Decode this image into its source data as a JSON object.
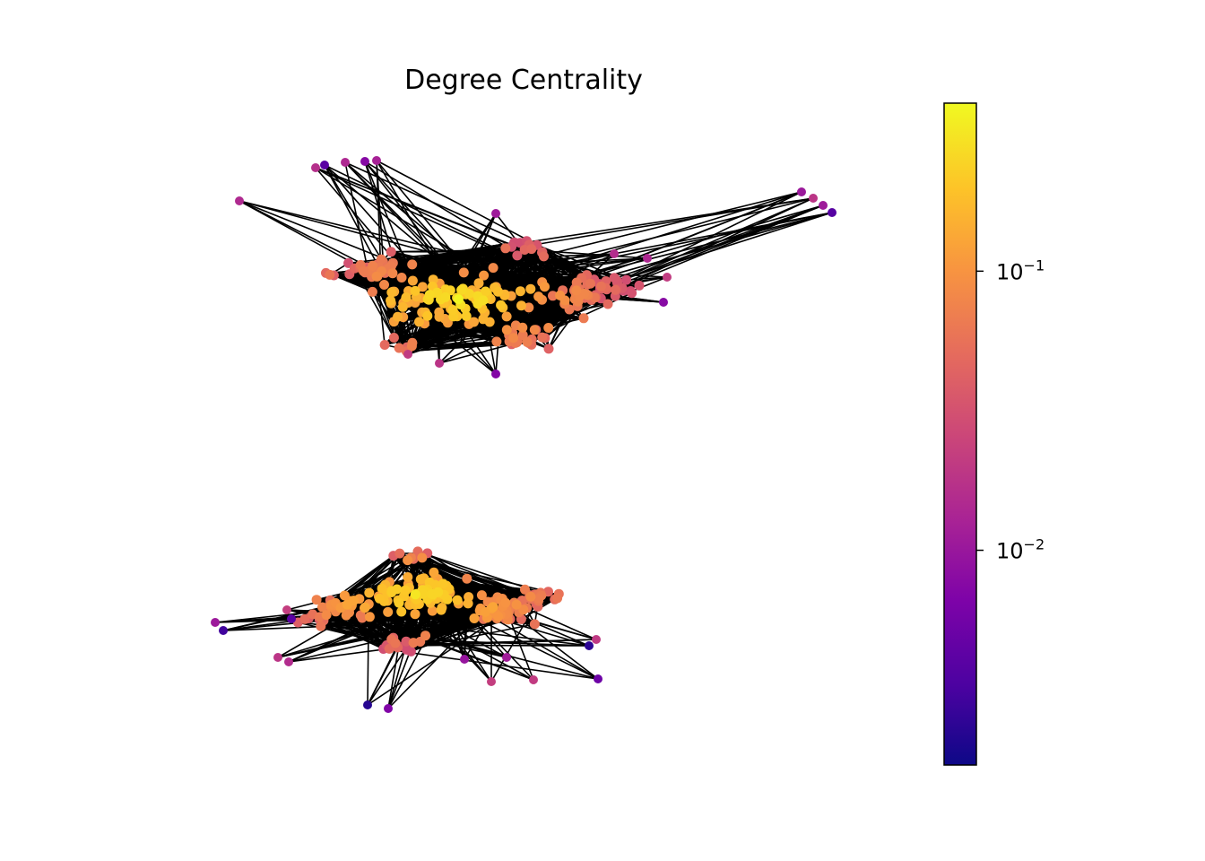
{
  "chart_data": {
    "type": "network-graph",
    "title": "Degree Centrality",
    "color_scale": "plasma",
    "colorbar": {
      "scale": "log",
      "range": [
        0.0017,
        0.4
      ],
      "ticks": [
        {
          "base": "10",
          "exp": "−1",
          "value": 0.1
        },
        {
          "base": "10",
          "exp": "−2",
          "value": 0.01
        }
      ]
    },
    "components": [
      {
        "name": "upper-component",
        "approx_nodes": 240,
        "max_centrality": 0.35,
        "min_centrality": 0.002
      },
      {
        "name": "lower-component",
        "approx_nodes": 200,
        "max_centrality": 0.3,
        "min_centrality": 0.002
      }
    ],
    "colors": {
      "edge": "#000000",
      "high": "#f0f921",
      "mid": "#f89540",
      "low": "#0d0887"
    }
  }
}
